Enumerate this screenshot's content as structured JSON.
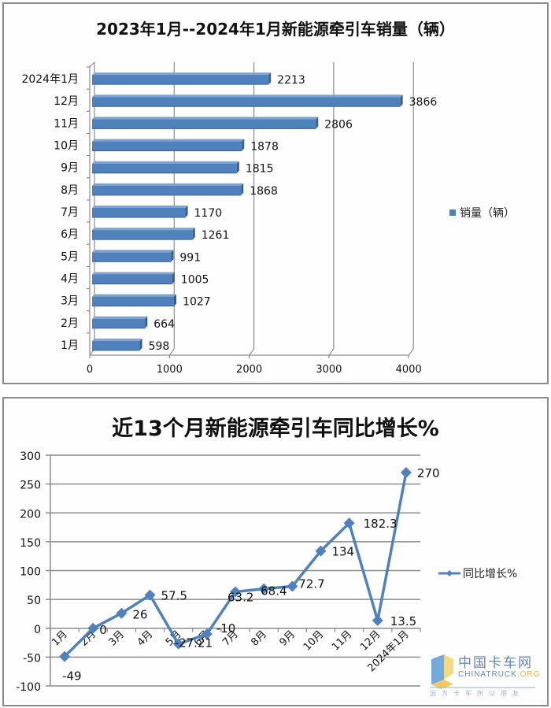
{
  "chart_data": [
    {
      "type": "bar",
      "orientation": "horizontal",
      "title": "2023年1月--2024年1月新能源牵引车销量（辆）",
      "categories": [
        "2024年1月",
        "12月",
        "11月",
        "10月",
        "9月",
        "8月",
        "7月",
        "6月",
        "5月",
        "4月",
        "3月",
        "2月",
        "1月"
      ],
      "series": [
        {
          "name": "销量（辆）",
          "values": [
            2213,
            3866,
            2806,
            1878,
            1815,
            1868,
            1170,
            1261,
            991,
            1005,
            1027,
            664,
            598
          ],
          "color": "#4f81bd"
        }
      ],
      "xlabel": "",
      "ylabel": "",
      "xlim": [
        0,
        4000
      ],
      "xticks": [
        "0",
        "1000",
        "2000",
        "3000",
        "4000"
      ],
      "grid": "vertical",
      "legend_position": "right",
      "style": "3d-bar"
    },
    {
      "type": "line",
      "title": "近13个月新能源牵引车同比增长%",
      "categories": [
        "1月",
        "2月",
        "3月",
        "4月",
        "5月",
        "6月",
        "7月",
        "8月",
        "9月",
        "10月",
        "11月",
        "12月",
        "2024年1月"
      ],
      "series": [
        {
          "name": "同比增长%",
          "values": [
            -49,
            0,
            26,
            57.5,
            -27.21,
            -10,
            63.2,
            68.4,
            72.7,
            134,
            182.3,
            13.5,
            270
          ],
          "labels": [
            "-49",
            "0",
            "26",
            "57.5",
            "-27.21",
            "-10",
            "63.2",
            "68.4",
            "72.7",
            "134",
            "182.3",
            "13.5",
            "270"
          ],
          "color": "#4f81bd",
          "marker": "diamond"
        }
      ],
      "xlabel": "",
      "ylabel": "",
      "ylim": [
        -100,
        300
      ],
      "yticks": [
        "300",
        "250",
        "200",
        "150",
        "100",
        "50",
        "0",
        "-50",
        "-100"
      ],
      "grid": "horizontal",
      "legend_position": "right"
    }
  ],
  "chart1": {
    "title": "2023年1月--2024年1月新能源牵引车销量（辆）",
    "legend": "销量（辆）"
  },
  "chart2": {
    "title": "近13个月新能源牵引车同比增长%",
    "legend": "同比增长%"
  },
  "watermark": {
    "brand_cn": "中国卡车网",
    "brand_en": "CHINATRUCK",
    "brand_tld": ".ORG",
    "slogan": "因为卡车所以朋友"
  },
  "colors": {
    "series": "#4f81bd",
    "series_dark": "#385d8a",
    "grid": "#8c8c8c",
    "frame": "#8a8a8a"
  }
}
